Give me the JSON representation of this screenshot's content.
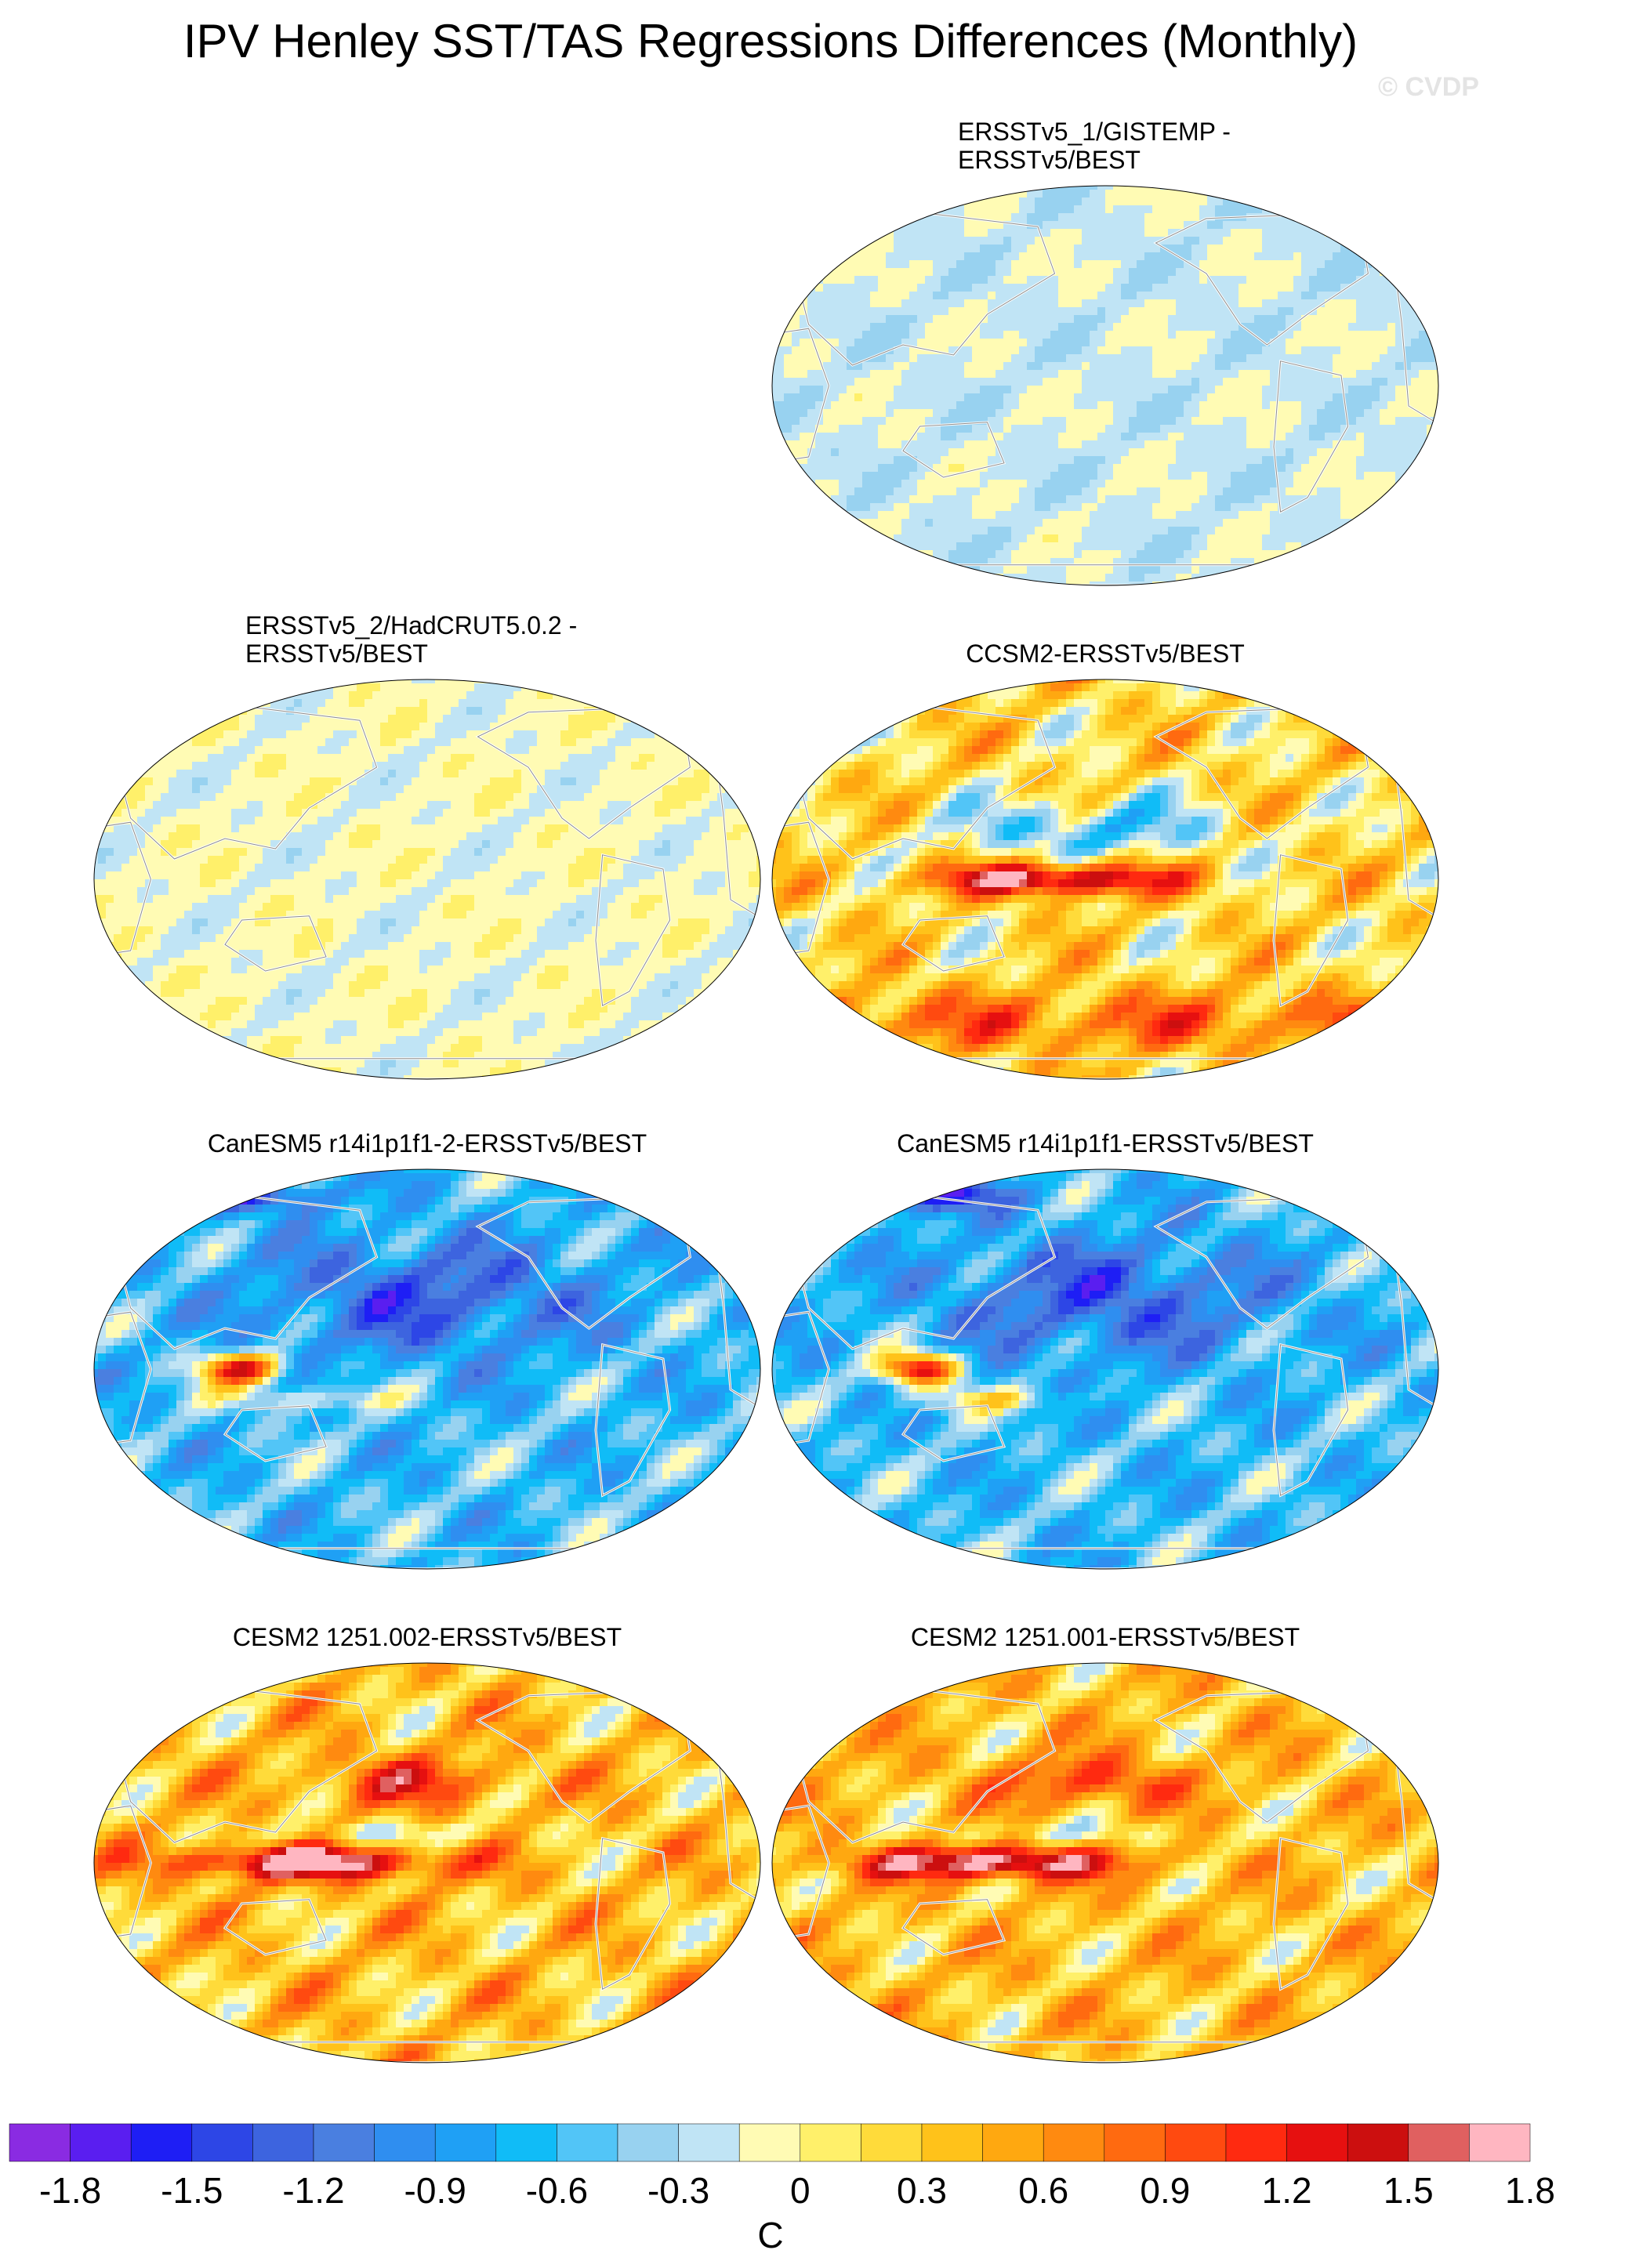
{
  "title": "IPV Henley SST/TAS Regressions Differences (Monthly)",
  "watermark": "© CVDP",
  "colors": {
    "ocean_base": "#bfe3f2",
    "land_outline": "#ffffff",
    "ellipse_border": "#000000"
  },
  "chart_data": {
    "type": "heatmap",
    "panels": [
      {
        "id": "p1",
        "title_lines": [
          "ERSSTv5_1/GISTEMP -",
          "ERSSTv5/BEST"
        ],
        "pattern": "weak_mixed",
        "bias": -0.2,
        "range": 0.5
      },
      {
        "id": "p2",
        "title_lines": [
          "ERSSTv5_2/HadCRUT5.0.2 -",
          "ERSSTv5/BEST"
        ],
        "pattern": "weak_mixed",
        "bias": -0.1,
        "range": 0.45
      },
      {
        "id": "p3",
        "title_lines": [
          "CCSM2-ERSSTv5/BEST"
        ],
        "pattern": "enso_positive",
        "bias": 0.2,
        "range": 1.4
      },
      {
        "id": "p4",
        "title_lines": [
          "CanESM5 r14i1p1f1-2-ERSSTv5/BEST"
        ],
        "pattern": "cold_pacific",
        "bias": -0.6,
        "range": 1.2
      },
      {
        "id": "p5",
        "title_lines": [
          "CanESM5 r14i1p1f1-ERSSTv5/BEST"
        ],
        "pattern": "cold_pacific",
        "bias": -0.6,
        "range": 1.2
      },
      {
        "id": "p6",
        "title_lines": [
          "CESM2 1251.002-ERSSTv5/BEST"
        ],
        "pattern": "warm_enso",
        "bias": 0.35,
        "range": 1.4
      },
      {
        "id": "p7",
        "title_lines": [
          "CESM2 1251.001-ERSSTv5/BEST"
        ],
        "pattern": "warm_enso",
        "bias": 0.35,
        "range": 1.3
      }
    ],
    "colorbar": {
      "unit": "C",
      "levels": [
        -1.8,
        -1.5,
        -1.2,
        -0.9,
        -0.6,
        -0.3,
        0,
        0.3,
        0.6,
        0.9,
        1.2,
        1.5,
        1.8
      ],
      "tick_labels": [
        "-1.8",
        "-1.5",
        "-1.2",
        "-0.9",
        "-0.6",
        "-0.3",
        "0",
        "0.3",
        "0.6",
        "0.9",
        "1.2",
        "1.5",
        "1.8"
      ],
      "colors": [
        "#8a2be2",
        "#5a1ef0",
        "#1e1ef5",
        "#2d46e6",
        "#3d64df",
        "#4a7fe0",
        "#2f8ef0",
        "#1fa0f5",
        "#10bcf7",
        "#52c5f7",
        "#98d2f0",
        "#c0e4f5",
        "#fffbb4",
        "#fff06a",
        "#ffdb3a",
        "#ffc21a",
        "#ffa810",
        "#ff8a10",
        "#ff6a10",
        "#ff4a10",
        "#ff2a10",
        "#e61010",
        "#cc0f0f",
        "#e06060",
        "#ffb6c1"
      ]
    }
  }
}
